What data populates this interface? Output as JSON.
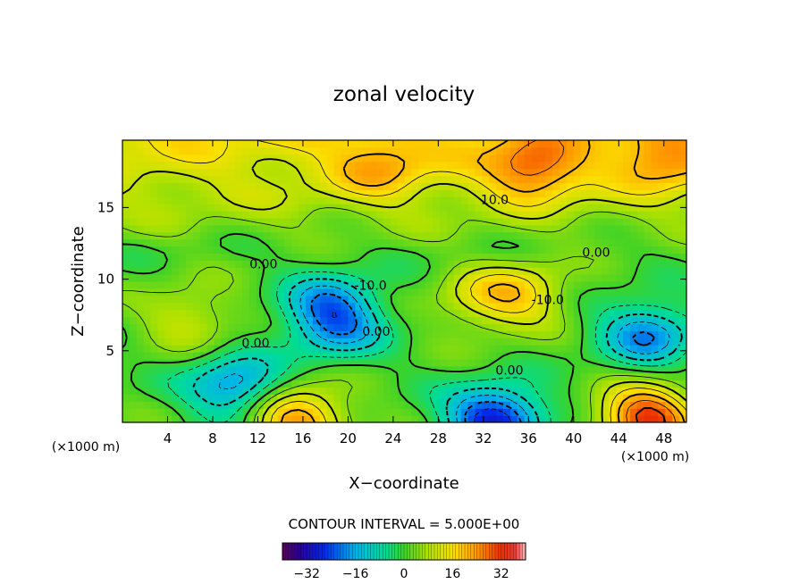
{
  "chart_data": {
    "type": "heatmap",
    "title": "zonal velocity",
    "xlabel": "X−coordinate",
    "ylabel": "Z−coordinate",
    "x_unit_left": "(×1000 m)",
    "x_unit_right": "(×1000 m)",
    "xlim": [
      0,
      50
    ],
    "ylim": [
      0,
      19.7
    ],
    "x_ticks": [
      4,
      8,
      12,
      16,
      20,
      24,
      28,
      32,
      36,
      40,
      44,
      48
    ],
    "y_ticks": [
      5,
      10,
      15
    ],
    "grid": false,
    "contour_interval_text": "CONTOUR INTERVAL = 5.000E+00",
    "contour_labels": [
      {
        "text": "10.0",
        "x": 33,
        "y": 15.5
      },
      {
        "text": "0.00",
        "x": 12.5,
        "y": 11.0
      },
      {
        "text": "0.00",
        "x": 42,
        "y": 11.8
      },
      {
        "text": "-10.0",
        "x": 22,
        "y": 9.5
      },
      {
        "text": "-10.0",
        "x": 37.7,
        "y": 8.5
      },
      {
        "text": "0.00",
        "x": 11.8,
        "y": 5.5
      },
      {
        "text": "0.00",
        "x": 22.5,
        "y": 6.3
      },
      {
        "text": "0.00",
        "x": 34.3,
        "y": 3.6
      }
    ],
    "features": [
      {
        "x": 46.5,
        "y": 0.3,
        "value": 32
      },
      {
        "x": 15.5,
        "y": 0.3,
        "value": 24
      },
      {
        "x": 33,
        "y": 0.3,
        "value": -30
      },
      {
        "x": 10,
        "y": 2.5,
        "value": -20
      },
      {
        "x": 46.5,
        "y": 6.2,
        "value": -20
      },
      {
        "x": 18.5,
        "y": 8.2,
        "value": -18
      },
      {
        "x": 19,
        "y": 6.3,
        "value": -12
      },
      {
        "x": 35.5,
        "y": 9.0,
        "value": 14
      },
      {
        "x": 31.5,
        "y": 8.5,
        "value": 10
      },
      {
        "x": 6,
        "y": 7.5,
        "value": 10
      },
      {
        "x": 36.5,
        "y": 17.8,
        "value": 22
      },
      {
        "x": 48,
        "y": 18.5,
        "value": 18
      },
      {
        "x": 23,
        "y": 18.0,
        "value": 15
      }
    ],
    "colorbar": {
      "ticks": [
        -32,
        -16,
        0,
        16,
        32
      ],
      "range": [
        -40,
        40
      ]
    }
  }
}
